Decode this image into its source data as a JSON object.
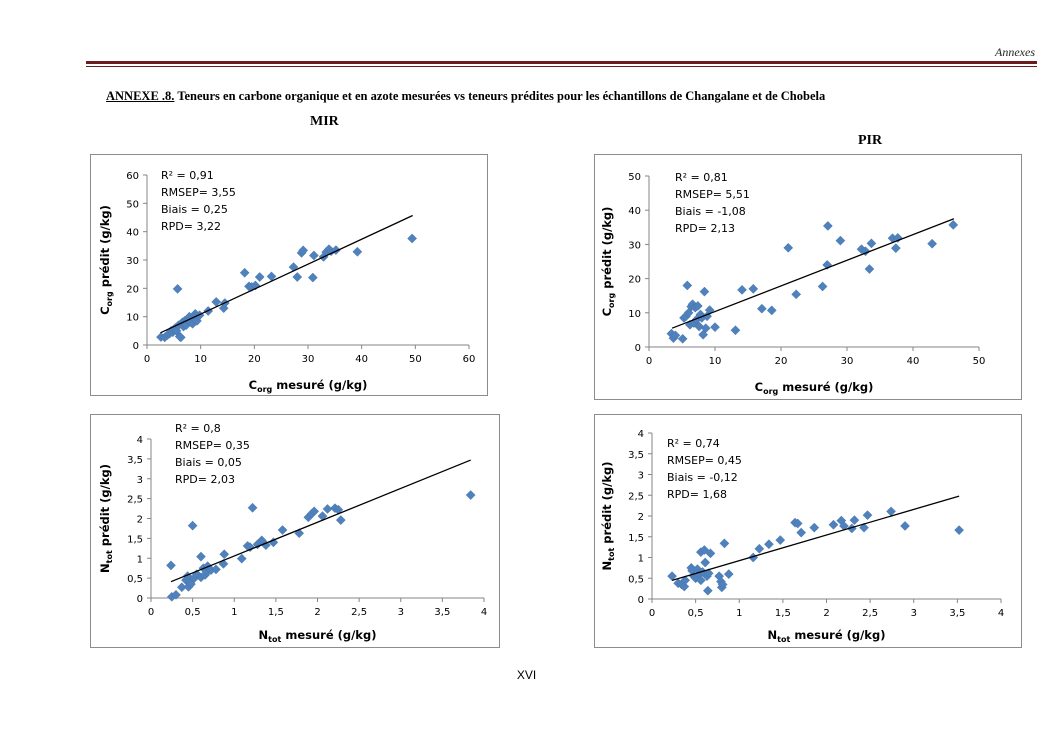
{
  "header": {
    "running_title": "Annexes"
  },
  "annex": {
    "label": "ANNEXE .8.",
    "text": " Teneurs en carbone organique et  en azote mesurées vs teneurs prédites pour  les échantillons de  Changalane et de Chobela"
  },
  "sections": {
    "mir": "MIR",
    "pir": "PIR"
  },
  "footer": {
    "page_number": "XVI"
  },
  "colors": {
    "marker": "#4f81bd",
    "fit_line": "#000000",
    "frame": "#8c8c8c"
  },
  "chart_data": [
    {
      "id": "mir-corg",
      "type": "scatter",
      "title": "",
      "section": "MIR",
      "xlabel_main": "C",
      "xlabel_sub": "org",
      "xlabel_rest": " mesuré (g/kg)",
      "ylabel_main": "C",
      "ylabel_sub": "org",
      "ylabel_rest": " prédit (g/kg)",
      "xlim": [
        0,
        60
      ],
      "ylim": [
        0,
        60
      ],
      "xticks": [
        "0",
        "10",
        "20",
        "30",
        "40",
        "50",
        "60"
      ],
      "yticks": [
        "0",
        "10",
        "20",
        "30",
        "40",
        "50",
        "60"
      ],
      "xtick_values": [
        0,
        10,
        20,
        30,
        40,
        50,
        60
      ],
      "ytick_values": [
        0,
        10,
        20,
        30,
        40,
        50,
        60
      ],
      "stats": [
        "R² = 0,91",
        "RMSEP= 3,55",
        "Biais = 0,25",
        "RPD= 3,22"
      ],
      "fit_line": {
        "x": [
          2.5,
          49.5
        ],
        "y": [
          4.3,
          45.7
        ]
      },
      "points": [
        [
          2.6,
          2.8
        ],
        [
          3.3,
          2.7
        ],
        [
          3.8,
          3.5
        ],
        [
          4.2,
          4.0
        ],
        [
          4.5,
          5.0
        ],
        [
          4.8,
          4.5
        ],
        [
          5.0,
          5.5
        ],
        [
          5.3,
          6.0
        ],
        [
          5.5,
          5.0
        ],
        [
          5.7,
          19.8
        ],
        [
          5.9,
          7.0
        ],
        [
          6.1,
          3.0
        ],
        [
          6.3,
          2.7
        ],
        [
          6.4,
          7.5
        ],
        [
          6.6,
          8.0
        ],
        [
          6.8,
          6.5
        ],
        [
          7.0,
          8.5
        ],
        [
          7.3,
          7.0
        ],
        [
          7.6,
          9.0
        ],
        [
          7.9,
          10.0
        ],
        [
          8.2,
          8.0
        ],
        [
          8.5,
          7.5
        ],
        [
          8.8,
          9.5
        ],
        [
          9.0,
          11.0
        ],
        [
          9.3,
          8.5
        ],
        [
          9.8,
          10.5
        ],
        [
          11.4,
          12.0
        ],
        [
          12.9,
          15.2
        ],
        [
          14.3,
          13.0
        ],
        [
          14.5,
          14.8
        ],
        [
          18.2,
          25.5
        ],
        [
          19.0,
          20.7
        ],
        [
          19.5,
          20.5
        ],
        [
          20.2,
          21.0
        ],
        [
          21.0,
          24.0
        ],
        [
          23.2,
          24.2
        ],
        [
          27.3,
          27.5
        ],
        [
          28.0,
          24.0
        ],
        [
          28.8,
          32.5
        ],
        [
          29.1,
          33.4
        ],
        [
          30.9,
          23.8
        ],
        [
          31.1,
          31.6
        ],
        [
          32.9,
          31.1
        ],
        [
          33.4,
          32.8
        ],
        [
          33.9,
          33.8
        ],
        [
          34.3,
          33.1
        ],
        [
          35.2,
          33.5
        ],
        [
          39.2,
          32.9
        ],
        [
          49.4,
          37.6
        ]
      ]
    },
    {
      "id": "pir-corg",
      "type": "scatter",
      "title": "",
      "section": "PIR",
      "xlabel_main": "C",
      "xlabel_sub": "org",
      "xlabel_rest": " mesuré (g/kg)",
      "ylabel_main": "C",
      "ylabel_sub": "org",
      "ylabel_rest": " prédit (g/kg)",
      "xlim": [
        0,
        50
      ],
      "ylim": [
        0,
        50
      ],
      "xticks": [
        "0",
        "10",
        "20",
        "30",
        "40",
        "50"
      ],
      "yticks": [
        "0",
        "10",
        "20",
        "30",
        "40",
        "50"
      ],
      "xtick_values": [
        0,
        10,
        20,
        30,
        40,
        50
      ],
      "ytick_values": [
        0,
        10,
        20,
        30,
        40,
        50
      ],
      "stats": [
        "R² = 0,81",
        "RMSEP= 5,51",
        "Biais = -1,08",
        "RPD= 2,13"
      ],
      "fit_line": {
        "x": [
          3.5,
          46.2
        ],
        "y": [
          5.5,
          37.5
        ]
      },
      "points": [
        [
          3.4,
          3.9
        ],
        [
          3.7,
          2.6
        ],
        [
          4.0,
          3.4
        ],
        [
          5.1,
          2.4
        ],
        [
          5.3,
          8.5
        ],
        [
          5.6,
          9.0
        ],
        [
          5.8,
          18.0
        ],
        [
          6.0,
          10.0
        ],
        [
          6.2,
          6.5
        ],
        [
          6.4,
          11.8
        ],
        [
          6.6,
          12.5
        ],
        [
          6.8,
          7.0
        ],
        [
          7.0,
          11.5
        ],
        [
          7.2,
          8.0
        ],
        [
          7.4,
          12.0
        ],
        [
          7.6,
          6.0
        ],
        [
          7.8,
          9.5
        ],
        [
          8.0,
          8.5
        ],
        [
          8.2,
          3.6
        ],
        [
          8.4,
          16.2
        ],
        [
          8.6,
          5.5
        ],
        [
          8.8,
          9.0
        ],
        [
          9.2,
          10.8
        ],
        [
          10.0,
          5.8
        ],
        [
          13.1,
          4.9
        ],
        [
          14.1,
          16.7
        ],
        [
          15.8,
          17.0
        ],
        [
          17.1,
          11.2
        ],
        [
          18.6,
          10.7
        ],
        [
          21.1,
          29.0
        ],
        [
          22.3,
          15.4
        ],
        [
          26.3,
          17.7
        ],
        [
          27.0,
          24.0
        ],
        [
          27.1,
          35.4
        ],
        [
          29.0,
          31.1
        ],
        [
          32.2,
          28.6
        ],
        [
          32.8,
          28.0
        ],
        [
          33.4,
          22.8
        ],
        [
          33.7,
          30.3
        ],
        [
          36.9,
          31.8
        ],
        [
          37.4,
          28.9
        ],
        [
          37.7,
          31.9
        ],
        [
          42.9,
          30.2
        ],
        [
          46.1,
          35.7
        ]
      ]
    },
    {
      "id": "mir-ntot",
      "type": "scatter",
      "title": "",
      "section": "MIR",
      "xlabel_main": "N",
      "xlabel_sub": "tot",
      "xlabel_rest": " mesuré (g/kg)",
      "ylabel_main": "N",
      "ylabel_sub": "tot",
      "ylabel_rest": " prédit (g/kg)",
      "xlim": [
        0,
        4
      ],
      "ylim": [
        0,
        4
      ],
      "xticks": [
        "0",
        "0,5",
        "1",
        "1,5",
        "2",
        "2,5",
        "3",
        "3,5",
        "4"
      ],
      "yticks": [
        "0",
        "0,5",
        "1",
        "1,5",
        "2",
        "2,5",
        "3",
        "3,5",
        "4"
      ],
      "xtick_values": [
        0,
        0.5,
        1,
        1.5,
        2,
        2.5,
        3,
        3.5,
        4
      ],
      "ytick_values": [
        0,
        0.5,
        1,
        1.5,
        2,
        2.5,
        3,
        3.5,
        4
      ],
      "stats": [
        "R² = 0,8",
        "RMSEP= 0,35",
        "Biais = 0,05",
        "RPD= 2,03"
      ],
      "fit_line": {
        "x": [
          0.24,
          3.84
        ],
        "y": [
          0.41,
          3.47
        ]
      },
      "points": [
        [
          0.24,
          0.82
        ],
        [
          0.25,
          0.03
        ],
        [
          0.3,
          0.08
        ],
        [
          0.37,
          0.27
        ],
        [
          0.42,
          0.45
        ],
        [
          0.44,
          0.55
        ],
        [
          0.45,
          0.28
        ],
        [
          0.47,
          0.4
        ],
        [
          0.48,
          0.35
        ],
        [
          0.5,
          1.82
        ],
        [
          0.52,
          0.5
        ],
        [
          0.55,
          0.6
        ],
        [
          0.6,
          1.04
        ],
        [
          0.6,
          0.52
        ],
        [
          0.63,
          0.75
        ],
        [
          0.65,
          0.58
        ],
        [
          0.67,
          0.65
        ],
        [
          0.68,
          0.8
        ],
        [
          0.72,
          0.7
        ],
        [
          0.78,
          0.72
        ],
        [
          0.87,
          0.86
        ],
        [
          0.88,
          1.1
        ],
        [
          1.09,
          0.99
        ],
        [
          1.16,
          1.31
        ],
        [
          1.19,
          1.28
        ],
        [
          1.22,
          2.27
        ],
        [
          1.28,
          1.35
        ],
        [
          1.33,
          1.45
        ],
        [
          1.38,
          1.33
        ],
        [
          1.47,
          1.4
        ],
        [
          1.58,
          1.71
        ],
        [
          1.78,
          1.63
        ],
        [
          1.89,
          2.03
        ],
        [
          1.93,
          2.12
        ],
        [
          1.96,
          2.18
        ],
        [
          2.06,
          2.06
        ],
        [
          2.12,
          2.24
        ],
        [
          2.21,
          2.26
        ],
        [
          2.25,
          2.22
        ],
        [
          2.28,
          1.96
        ],
        [
          3.84,
          2.59
        ]
      ]
    },
    {
      "id": "pir-ntot",
      "type": "scatter",
      "title": "",
      "section": "PIR",
      "xlabel_main": "N",
      "xlabel_sub": "tot",
      "xlabel_rest": " mesuré (g/kg)",
      "ylabel_main": "N",
      "ylabel_sub": "tot",
      "ylabel_rest": " prédit (g/kg)",
      "xlim": [
        0,
        4
      ],
      "ylim": [
        0,
        4
      ],
      "xticks": [
        "0",
        "0,5",
        "1",
        "1,5",
        "2",
        "2,5",
        "3",
        "3,5",
        "4"
      ],
      "yticks": [
        "0",
        "0,5",
        "1",
        "1,5",
        "2",
        "2,5",
        "3",
        "3,5",
        "4"
      ],
      "xtick_values": [
        0,
        0.5,
        1,
        1.5,
        2,
        2.5,
        3,
        3.5,
        4
      ],
      "ytick_values": [
        0,
        0.5,
        1,
        1.5,
        2,
        2.5,
        3,
        3.5,
        4
      ],
      "stats": [
        "R² = 0,74",
        "RMSEP= 0,45",
        "Biais = -0,12",
        "RPD= 1,68"
      ],
      "fit_line": {
        "x": [
          0.23,
          3.52
        ],
        "y": [
          0.45,
          2.48
        ]
      },
      "points": [
        [
          0.23,
          0.55
        ],
        [
          0.3,
          0.38
        ],
        [
          0.34,
          0.35
        ],
        [
          0.37,
          0.3
        ],
        [
          0.38,
          0.45
        ],
        [
          0.45,
          0.75
        ],
        [
          0.46,
          0.68
        ],
        [
          0.48,
          0.55
        ],
        [
          0.5,
          0.5
        ],
        [
          0.52,
          0.72
        ],
        [
          0.54,
          0.6
        ],
        [
          0.56,
          1.13
        ],
        [
          0.56,
          0.45
        ],
        [
          0.58,
          0.65
        ],
        [
          0.6,
          1.18
        ],
        [
          0.61,
          0.88
        ],
        [
          0.63,
          0.55
        ],
        [
          0.64,
          0.2
        ],
        [
          0.65,
          0.62
        ],
        [
          0.67,
          1.1
        ],
        [
          0.77,
          0.55
        ],
        [
          0.79,
          0.42
        ],
        [
          0.8,
          0.28
        ],
        [
          0.81,
          0.35
        ],
        [
          0.83,
          1.34
        ],
        [
          0.88,
          0.6
        ],
        [
          1.16,
          1.0
        ],
        [
          1.23,
          1.21
        ],
        [
          1.34,
          1.32
        ],
        [
          1.47,
          1.42
        ],
        [
          1.64,
          1.84
        ],
        [
          1.67,
          1.82
        ],
        [
          1.71,
          1.6
        ],
        [
          1.86,
          1.72
        ],
        [
          2.08,
          1.79
        ],
        [
          2.17,
          1.89
        ],
        [
          2.2,
          1.76
        ],
        [
          2.29,
          1.7
        ],
        [
          2.32,
          1.9
        ],
        [
          2.43,
          1.72
        ],
        [
          2.47,
          2.02
        ],
        [
          2.74,
          2.11
        ],
        [
          2.9,
          1.76
        ],
        [
          3.52,
          1.66
        ]
      ]
    }
  ]
}
